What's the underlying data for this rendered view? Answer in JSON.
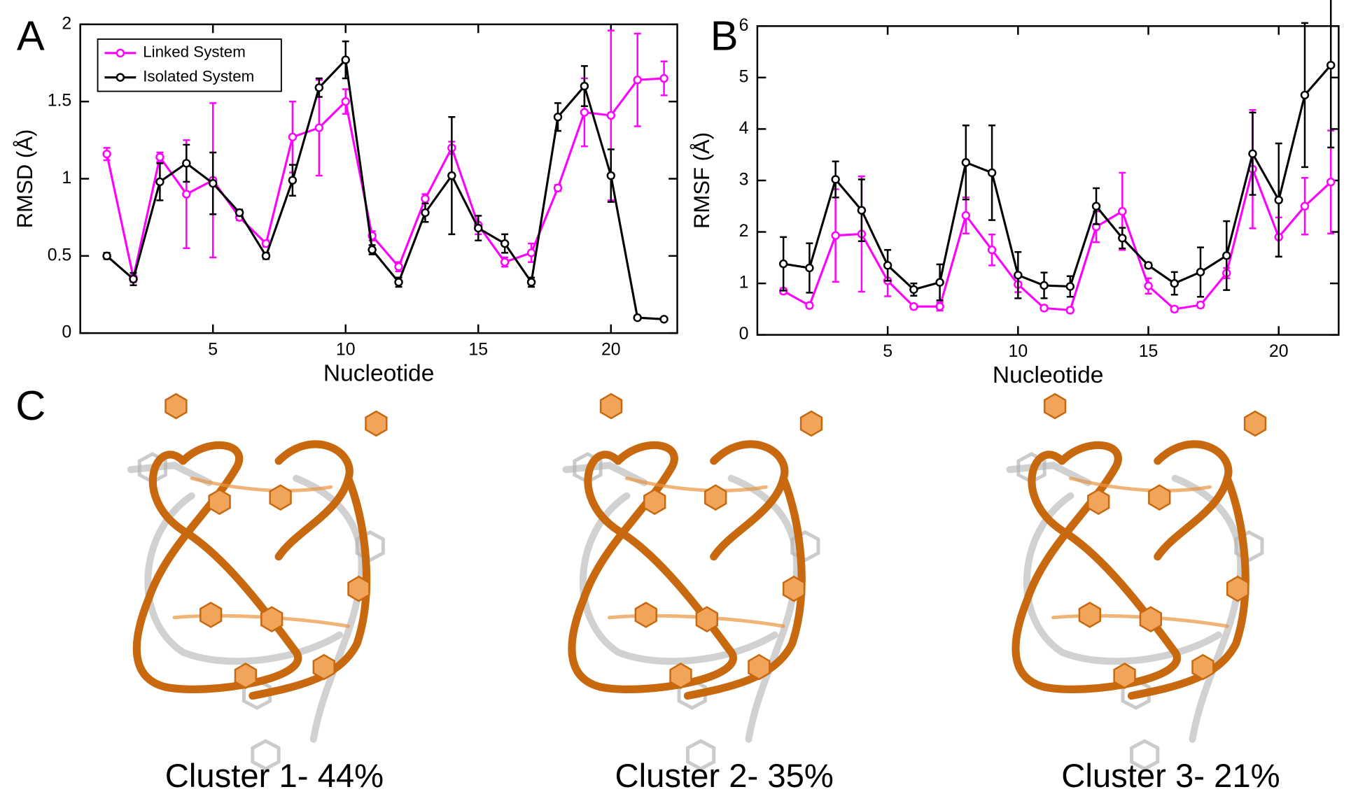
{
  "panel_labels": [
    "A",
    "B",
    "C"
  ],
  "chart_data": [
    {
      "type": "line",
      "x_label": "Nucleotide",
      "y_label": "RMSD (Å)",
      "x": [
        1,
        2,
        3,
        4,
        5,
        6,
        7,
        8,
        9,
        10,
        11,
        12,
        13,
        14,
        15,
        16,
        17,
        18,
        19,
        20,
        21,
        22
      ],
      "xlim": [
        0,
        22.5
      ],
      "xticks": [
        5,
        10,
        15,
        20
      ],
      "ylim": [
        0,
        2
      ],
      "yticks": [
        0,
        0.5,
        1,
        1.5,
        2
      ],
      "legend": "upper left",
      "series": [
        {
          "name": "Linked System",
          "color": "#ff00ff",
          "values": [
            1.16,
            0.36,
            1.14,
            0.9,
            0.99,
            0.75,
            0.58,
            1.27,
            1.33,
            1.5,
            0.63,
            0.43,
            0.87,
            1.2,
            0.7,
            0.46,
            0.52,
            0.94,
            1.43,
            1.41,
            1.64,
            1.65
          ],
          "errors": [
            0.04,
            0.03,
            0.03,
            0.35,
            0.5,
            0.02,
            0.02,
            0.23,
            0.31,
            0.08,
            0.03,
            0.03,
            0.03,
            0.04,
            0.06,
            0.03,
            0.06,
            0.02,
            0.22,
            0.55,
            0.3,
            0.11
          ]
        },
        {
          "name": "Isolated System",
          "color": "#000000",
          "values": [
            0.5,
            0.35,
            0.98,
            1.1,
            0.97,
            0.78,
            0.5,
            0.99,
            1.59,
            1.77,
            0.54,
            0.33,
            0.78,
            1.02,
            0.68,
            0.58,
            0.33,
            1.4,
            1.6,
            1.02,
            0.1,
            0.09
          ],
          "errors": [
            0.02,
            0.04,
            0.12,
            0.12,
            0.2,
            0.02,
            0.02,
            0.1,
            0.06,
            0.12,
            0.03,
            0.03,
            0.06,
            0.38,
            0.08,
            0.06,
            0.03,
            0.09,
            0.13,
            0.17,
            0,
            0
          ]
        }
      ]
    },
    {
      "type": "line",
      "x_label": "Nucleotide",
      "y_label": "RMSF (Å)",
      "x": [
        1,
        2,
        3,
        4,
        5,
        6,
        7,
        8,
        9,
        10,
        11,
        12,
        13,
        14,
        15,
        16,
        17,
        18,
        19,
        20,
        21,
        22
      ],
      "xlim": [
        0,
        22.3
      ],
      "xticks": [
        5,
        10,
        15,
        20
      ],
      "ylim": [
        0,
        6
      ],
      "yticks": [
        0,
        1,
        2,
        3,
        4,
        5,
        6
      ],
      "series": [
        {
          "color": "#ff00ff",
          "values": [
            0.85,
            0.57,
            1.93,
            1.96,
            1.05,
            0.55,
            0.55,
            2.32,
            1.65,
            0.98,
            0.52,
            0.48,
            2.1,
            2.4,
            0.95,
            0.5,
            0.58,
            1.2,
            3.22,
            1.9,
            2.5,
            2.97
          ],
          "errors": [
            0.05,
            0.05,
            0.9,
            1.12,
            0.3,
            0.05,
            0.08,
            0.35,
            0.3,
            0.15,
            0.05,
            0.05,
            0.3,
            0.75,
            0.15,
            0.05,
            0.05,
            0.1,
            1.15,
            0.38,
            0.55,
            1.0
          ]
        },
        {
          "color": "#000000",
          "values": [
            1.38,
            1.3,
            3.02,
            2.42,
            1.35,
            0.88,
            1.02,
            3.35,
            3.15,
            1.16,
            0.96,
            0.94,
            2.5,
            1.88,
            1.35,
            1.0,
            1.22,
            1.54,
            3.52,
            2.62,
            4.66,
            5.24
          ],
          "errors": [
            0.52,
            0.48,
            0.35,
            0.6,
            0.3,
            0.12,
            0.35,
            0.72,
            0.92,
            0.45,
            0.25,
            0.2,
            0.35,
            0.2,
            0.05,
            0.22,
            0.48,
            0.67,
            0.8,
            1.1,
            1.4,
            1.6
          ]
        }
      ]
    }
  ],
  "clusters": [
    "Cluster 1- 44%",
    "Cluster 2- 35%",
    "Cluster 3- 21%"
  ]
}
